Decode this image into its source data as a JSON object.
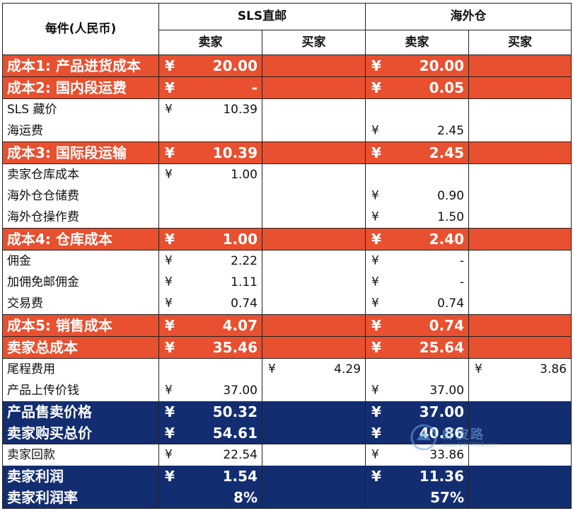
{
  "header": {
    "corner": "每件(人民币)",
    "groups": [
      "SLS直邮",
      "海外仓"
    ],
    "sub": [
      "卖家",
      "买家",
      "卖家",
      "买家"
    ]
  },
  "currency": "¥",
  "rows": [
    {
      "label": "成本1: 产品进货成本",
      "style": "orange",
      "c1": "20.00",
      "c2": "",
      "c3": "20.00",
      "c4": ""
    },
    {
      "label": "成本2: 国内段运费",
      "style": "orange",
      "c1": "-",
      "c2": "",
      "c3": "0.05",
      "c4": ""
    },
    {
      "label": "SLS 藏价",
      "style": "plain",
      "c1": "10.39",
      "c2": "",
      "c3": "",
      "c4": ""
    },
    {
      "label": "海运费",
      "style": "plain",
      "c1": "",
      "c2": "",
      "c3": "2.45",
      "c4": ""
    },
    {
      "label": "成本3: 国际段运输",
      "style": "orange",
      "c1": "10.39",
      "c2": "",
      "c3": "2.45",
      "c4": ""
    },
    {
      "label": "卖家仓库成本",
      "style": "plain",
      "c1": "1.00",
      "c2": "",
      "c3": "",
      "c4": ""
    },
    {
      "label": "海外仓仓储费",
      "style": "plain",
      "c1": "",
      "c2": "",
      "c3": "0.90",
      "c4": ""
    },
    {
      "label": "海外仓操作费",
      "style": "plain",
      "c1": "",
      "c2": "",
      "c3": "1.50",
      "c4": ""
    },
    {
      "label": "成本4: 仓库成本",
      "style": "orange",
      "c1": "1.00",
      "c2": "",
      "c3": "2.40",
      "c4": ""
    },
    {
      "label": "佣金",
      "style": "plain",
      "c1": "2.22",
      "c2": "",
      "c3": "-",
      "c4": ""
    },
    {
      "label": "加佣免邮佣金",
      "style": "plain",
      "c1": "1.11",
      "c2": "",
      "c3": "-",
      "c4": ""
    },
    {
      "label": "交易费",
      "style": "plain",
      "c1": "0.74",
      "c2": "",
      "c3": "0.74",
      "c4": ""
    },
    {
      "label": "成本5: 销售成本",
      "style": "orange",
      "c1": "4.07",
      "c2": "",
      "c3": "0.74",
      "c4": ""
    },
    {
      "label": "卖家总成本",
      "style": "orange",
      "c1": "35.46",
      "c2": "",
      "c3": "25.64",
      "c4": ""
    },
    {
      "label": "尾程费用",
      "style": "plain",
      "c1": "",
      "c2": "4.29",
      "c3": "",
      "c4": "3.86"
    },
    {
      "label": "产品上传价钱",
      "style": "plain",
      "c1": "37.00",
      "c2": "",
      "c3": "37.00",
      "c4": ""
    },
    {
      "label": "产品售卖价格",
      "style": "navy",
      "c1": "50.32",
      "c2": "",
      "c3": "37.00",
      "c4": ""
    },
    {
      "label": "卖家购买总价",
      "style": "navy",
      "c1": "54.61",
      "c2": "",
      "c3": "40.86",
      "c4": ""
    },
    {
      "label": "卖家回款",
      "style": "plain",
      "c1": "22.54",
      "c2": "",
      "c3": "33.86",
      "c4": ""
    },
    {
      "label": "卖家利润",
      "style": "navy",
      "c1": "1.54",
      "c2": "",
      "c3": "11.36",
      "c4": ""
    },
    {
      "label": "卖家利润率",
      "style": "navy",
      "pct": true,
      "c1": "8%",
      "c2": "",
      "c3": "57%",
      "c4": ""
    }
  ],
  "watermark": {
    "text": "虾皮路",
    "url": "www.SHOPEEO.com",
    "colors": {
      "orange": "#e8502f",
      "navy": "#132d71"
    }
  }
}
